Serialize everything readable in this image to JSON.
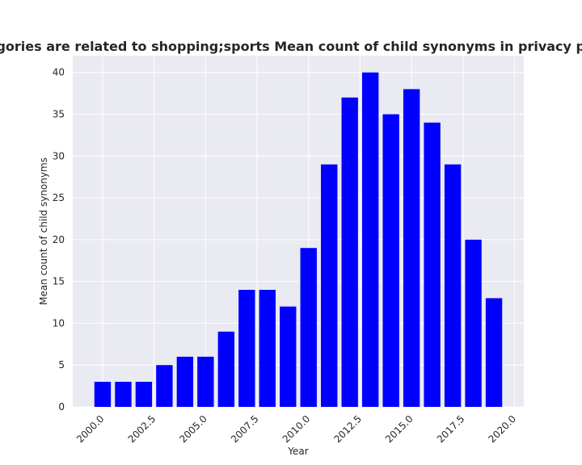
{
  "chart_data": {
    "type": "bar",
    "title": "n categories are related to shopping;sports Mean count of child synonyms in privacy policies b",
    "xlabel": "Year",
    "ylabel": "Mean count of child synonyms",
    "x": [
      2000,
      2001,
      2002,
      2003,
      2004,
      2005,
      2006,
      2007,
      2008,
      2009,
      2010,
      2011,
      2012,
      2013,
      2014,
      2015,
      2016,
      2017,
      2018,
      2019
    ],
    "values": [
      3,
      3,
      3,
      5,
      6,
      6,
      9,
      14,
      14,
      12,
      19,
      29,
      37,
      40,
      35,
      38,
      34,
      29,
      20,
      13
    ],
    "xlim": [
      1998.55,
      2020.45
    ],
    "ylim": [
      0,
      42
    ],
    "xticks": [
      "2000.0",
      "2002.5",
      "2005.0",
      "2007.5",
      "2010.0",
      "2012.5",
      "2015.0",
      "2017.5",
      "2020.0"
    ],
    "yticks": [
      "0",
      "5",
      "10",
      "15",
      "20",
      "25",
      "30",
      "35",
      "40"
    ],
    "bar_color": "#0000ff",
    "background_color": "#eaeaf2",
    "grid": true
  }
}
